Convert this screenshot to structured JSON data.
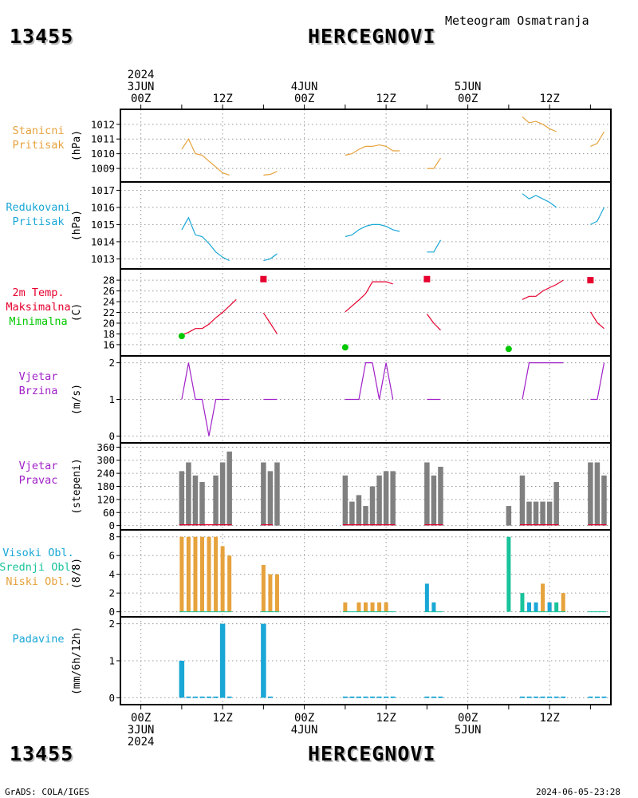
{
  "header": {
    "station_id": "13455",
    "station_name": "HERCEGNOVI",
    "chart_title": "Meteogram Osmatranja"
  },
  "footer": {
    "station_id": "13455",
    "station_name": "HERCEGNOVI",
    "credit": "GrADS: COLA/IGES",
    "timestamp": "2024-06-05-23:28"
  },
  "time_axis": {
    "top_labels": [
      {
        "t": 0,
        "lines": [
          "2024",
          "3JUN",
          "00Z"
        ]
      },
      {
        "t": 12,
        "lines": [
          "12Z"
        ]
      },
      {
        "t": 24,
        "lines": [
          "4JUN",
          "00Z"
        ]
      },
      {
        "t": 36,
        "lines": [
          "12Z"
        ]
      },
      {
        "t": 48,
        "lines": [
          "5JUN",
          "00Z"
        ]
      },
      {
        "t": 60,
        "lines": [
          "12Z"
        ]
      }
    ],
    "bottom_labels": [
      {
        "t": 0,
        "lines": [
          "00Z",
          "3JUN",
          "2024"
        ]
      },
      {
        "t": 12,
        "lines": [
          "12Z"
        ]
      },
      {
        "t": 24,
        "lines": [
          "00Z",
          "4JUN"
        ]
      },
      {
        "t": 36,
        "lines": [
          "12Z"
        ]
      },
      {
        "t": 48,
        "lines": [
          "00Z",
          "5JUN"
        ]
      },
      {
        "t": 60,
        "lines": [
          "12Z"
        ]
      }
    ],
    "range_hours": [
      -3,
      69
    ]
  },
  "colors": {
    "pressure": "#e6a23c",
    "reduced_pressure": "#19a7d6",
    "tmax": "#e6002e",
    "tmin": "#00c800",
    "wind": "#a020c8",
    "dir_bar": "#808080",
    "high_cloud": "#19a7d6",
    "mid_cloud": "#19c39b",
    "low_cloud": "#e6a23c",
    "precip": "#19a7d6"
  },
  "chart_data": [
    {
      "type": "line",
      "name": "station-pressure",
      "labels": [
        "Stanicni",
        "Pritisak"
      ],
      "unit": "(hPa)",
      "ylim": [
        1008.3,
        1012.8
      ],
      "yticks": [
        1009,
        1010,
        1011,
        1012
      ],
      "segments": [
        [
          [
            6,
            1010.3
          ],
          [
            7,
            1011.0
          ],
          [
            8,
            1010.0
          ],
          [
            9,
            1009.9
          ],
          [
            10,
            1009.5
          ],
          [
            11,
            1009.1
          ],
          [
            12,
            1008.7
          ],
          [
            13,
            1008.55
          ]
        ],
        [
          [
            18,
            1008.55
          ],
          [
            19,
            1008.6
          ],
          [
            20,
            1008.8
          ]
        ],
        [
          [
            30,
            1009.9
          ],
          [
            31,
            1010.0
          ],
          [
            32,
            1010.3
          ],
          [
            33,
            1010.5
          ],
          [
            34,
            1010.5
          ],
          [
            35,
            1010.6
          ],
          [
            36,
            1010.5
          ],
          [
            37,
            1010.2
          ],
          [
            38,
            1010.2
          ]
        ],
        [
          [
            42,
            1009.0
          ],
          [
            43,
            1009.0
          ],
          [
            44,
            1009.7
          ]
        ],
        [
          [
            56,
            1012.5
          ],
          [
            57,
            1012.1
          ],
          [
            58,
            1012.2
          ],
          [
            59,
            1012.0
          ],
          [
            60,
            1011.7
          ],
          [
            61,
            1011.5
          ]
        ],
        [
          [
            66,
            1010.5
          ],
          [
            67,
            1010.7
          ],
          [
            68,
            1011.5
          ]
        ]
      ]
    },
    {
      "type": "line",
      "name": "reduced-pressure",
      "labels": [
        "Redukovani",
        "Pritisak"
      ],
      "unit": "(hPa)",
      "ylim": [
        1012.6,
        1017.3
      ],
      "yticks": [
        1013,
        1014,
        1015,
        1016,
        1017
      ],
      "segments": [
        [
          [
            6,
            1014.7
          ],
          [
            7,
            1015.4
          ],
          [
            8,
            1014.4
          ],
          [
            9,
            1014.3
          ],
          [
            10,
            1013.9
          ],
          [
            11,
            1013.4
          ],
          [
            12,
            1013.1
          ],
          [
            13,
            1012.9
          ]
        ],
        [
          [
            18,
            1012.9
          ],
          [
            19,
            1013.0
          ],
          [
            20,
            1013.3
          ]
        ],
        [
          [
            30,
            1014.3
          ],
          [
            31,
            1014.4
          ],
          [
            32,
            1014.7
          ],
          [
            33,
            1014.9
          ],
          [
            34,
            1015.0
          ],
          [
            35,
            1015.0
          ],
          [
            36,
            1014.9
          ],
          [
            37,
            1014.7
          ],
          [
            38,
            1014.6
          ]
        ],
        [
          [
            42,
            1013.4
          ],
          [
            43,
            1013.4
          ],
          [
            44,
            1014.1
          ]
        ],
        [
          [
            56,
            1016.8
          ],
          [
            57,
            1016.5
          ],
          [
            58,
            1016.7
          ],
          [
            59,
            1016.5
          ],
          [
            60,
            1016.3
          ],
          [
            61,
            1016.0
          ]
        ],
        [
          [
            66,
            1015.0
          ],
          [
            67,
            1015.2
          ],
          [
            68,
            1016.0
          ]
        ]
      ]
    },
    {
      "type": "line",
      "name": "temperature",
      "labels": [
        "2m Temp.",
        "Maksimalna",
        "Minimalna"
      ],
      "unit": "(C)",
      "ylim": [
        14.5,
        29.5
      ],
      "yticks": [
        16,
        18,
        20,
        22,
        24,
        26,
        28
      ],
      "segments": [
        [
          [
            6,
            17.8
          ],
          [
            7,
            18.3
          ],
          [
            8,
            19.0
          ],
          [
            9,
            19.0
          ],
          [
            10,
            19.8
          ],
          [
            11,
            21.0
          ],
          [
            12,
            22.0
          ],
          [
            13,
            23.2
          ],
          [
            14,
            24.4
          ]
        ],
        [
          [
            18,
            21.9
          ],
          [
            19,
            20.0
          ],
          [
            20,
            18.0
          ]
        ],
        [
          [
            30,
            22.1
          ],
          [
            31,
            23.2
          ],
          [
            32,
            24.3
          ],
          [
            33,
            25.5
          ],
          [
            34,
            27.7
          ],
          [
            35,
            27.7
          ],
          [
            36,
            27.7
          ],
          [
            37,
            27.3
          ]
        ],
        [
          [
            42,
            21.7
          ],
          [
            43,
            20.0
          ],
          [
            44,
            18.7
          ]
        ],
        [
          [
            56,
            24.4
          ],
          [
            57,
            25.0
          ],
          [
            58,
            25.0
          ],
          [
            59,
            26.0
          ],
          [
            60,
            26.6
          ],
          [
            61,
            27.2
          ],
          [
            62,
            28.0
          ]
        ],
        [
          [
            66,
            22.1
          ],
          [
            67,
            20.1
          ],
          [
            68,
            19.0
          ]
        ]
      ],
      "tmax_points": [
        [
          18,
          28.2
        ],
        [
          42,
          28.2
        ],
        [
          66,
          28.0
        ]
      ],
      "tmin_points": [
        [
          6,
          17.6
        ],
        [
          30,
          15.5
        ],
        [
          54,
          15.2
        ]
      ]
    },
    {
      "type": "line",
      "name": "wind-speed",
      "labels": [
        "Vjetar",
        "Brzina"
      ],
      "unit": "(m/s)",
      "ylim": [
        -0.1,
        2.1
      ],
      "yticks": [
        0,
        1,
        2
      ],
      "segments": [
        [
          [
            6,
            1
          ],
          [
            7,
            2
          ],
          [
            8,
            1
          ],
          [
            9,
            1
          ],
          [
            10,
            0
          ],
          [
            11,
            1
          ],
          [
            12,
            1
          ],
          [
            13,
            1
          ]
        ],
        [
          [
            18,
            1
          ],
          [
            19,
            1
          ],
          [
            20,
            1
          ]
        ],
        [
          [
            30,
            1
          ],
          [
            31,
            1
          ],
          [
            32,
            1
          ],
          [
            33,
            2
          ],
          [
            34,
            2
          ],
          [
            35,
            1
          ],
          [
            36,
            2
          ],
          [
            37,
            1
          ]
        ],
        [
          [
            42,
            1
          ],
          [
            43,
            1
          ],
          [
            44,
            1
          ]
        ],
        [
          [
            56,
            1
          ],
          [
            57,
            2
          ],
          [
            58,
            2
          ],
          [
            59,
            2
          ],
          [
            60,
            2
          ],
          [
            61,
            2
          ],
          [
            62,
            2
          ]
        ],
        [
          [
            66,
            1
          ],
          [
            67,
            1
          ],
          [
            68,
            2
          ]
        ]
      ]
    },
    {
      "type": "bar",
      "name": "wind-direction",
      "labels": [
        "Vjetar",
        "Pravac"
      ],
      "unit": "(stepeni)",
      "ylim": [
        -5,
        365
      ],
      "yticks": [
        0,
        60,
        120,
        180,
        240,
        300,
        360
      ],
      "bars": [
        [
          6,
          250
        ],
        [
          7,
          290
        ],
        [
          8,
          230
        ],
        [
          9,
          200
        ],
        [
          11,
          230
        ],
        [
          12,
          290
        ],
        [
          13,
          340
        ],
        [
          18,
          290
        ],
        [
          19,
          250
        ],
        [
          20,
          290
        ],
        [
          30,
          230
        ],
        [
          31,
          110
        ],
        [
          32,
          140
        ],
        [
          33,
          90
        ],
        [
          34,
          180
        ],
        [
          35,
          230
        ],
        [
          36,
          250
        ],
        [
          37,
          250
        ],
        [
          42,
          290
        ],
        [
          43,
          230
        ],
        [
          44,
          270
        ],
        [
          54,
          90
        ],
        [
          56,
          230
        ],
        [
          57,
          110
        ],
        [
          58,
          110
        ],
        [
          59,
          110
        ],
        [
          60,
          110
        ],
        [
          61,
          200
        ],
        [
          66,
          290
        ],
        [
          67,
          290
        ],
        [
          68,
          230
        ]
      ],
      "calm_markers": [
        [
          6,
          13
        ],
        [
          30,
          37
        ],
        [
          56,
          61
        ],
        [
          18,
          19
        ],
        [
          42,
          44
        ],
        [
          66,
          68
        ]
      ]
    },
    {
      "type": "bar",
      "name": "cloud-cover",
      "labels": [
        "Visoki Obl.",
        "Srednji Obl.",
        "Niski Obl."
      ],
      "unit": "(8/8)",
      "ylim": [
        -0.2,
        8.4
      ],
      "yticks": [
        0,
        2,
        4,
        6,
        8
      ],
      "low": [
        [
          6,
          8
        ],
        [
          7,
          8
        ],
        [
          8,
          8
        ],
        [
          9,
          8
        ],
        [
          10,
          8
        ],
        [
          11,
          8
        ],
        [
          12,
          7
        ],
        [
          13,
          6
        ],
        [
          18,
          5
        ],
        [
          19,
          4
        ],
        [
          20,
          4
        ],
        [
          30,
          1
        ],
        [
          32,
          1
        ],
        [
          33,
          1
        ],
        [
          34,
          1
        ],
        [
          35,
          1
        ],
        [
          36,
          1
        ],
        [
          59,
          3
        ],
        [
          60,
          1
        ],
        [
          62,
          2
        ]
      ],
      "mid": [
        [
          54,
          8
        ],
        [
          56,
          2
        ],
        [
          57,
          1
        ],
        [
          61,
          1
        ]
      ],
      "high": [
        [
          42,
          3
        ],
        [
          43,
          1
        ],
        [
          57,
          1
        ],
        [
          58,
          1
        ],
        [
          60,
          1
        ]
      ]
    },
    {
      "type": "bar",
      "name": "precipitation",
      "labels": [
        "Padavine"
      ],
      "unit": "(mm/6h/12h)",
      "ylim": [
        -0.1,
        2.1
      ],
      "yticks": [
        0,
        1,
        2
      ],
      "bars": [
        [
          6,
          1
        ],
        [
          12,
          2
        ],
        [
          18,
          2
        ]
      ],
      "trace_hours": [
        7,
        8,
        9,
        10,
        11,
        13,
        19,
        30,
        31,
        32,
        33,
        34,
        35,
        36,
        37,
        42,
        43,
        44,
        56,
        57,
        58,
        59,
        60,
        61,
        62,
        66,
        67,
        68
      ]
    }
  ]
}
